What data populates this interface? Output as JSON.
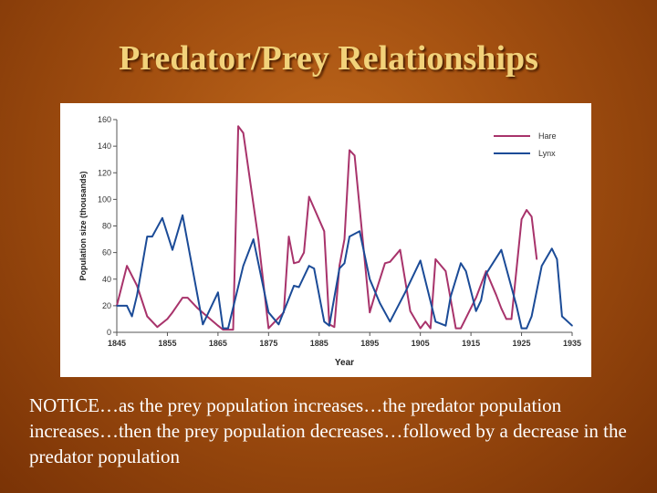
{
  "slide": {
    "title": "Predator/Prey Relationships",
    "caption": "NOTICE…as the prey population increases…the predator population increases…then the prey population decreases…followed by a decrease in the predator population"
  },
  "chart_data": {
    "type": "line",
    "xlabel": "Year",
    "ylabel": "Population size (thousands)",
    "xlim": [
      1845,
      1935
    ],
    "ylim": [
      0,
      160
    ],
    "xticks": [
      1845,
      1855,
      1865,
      1875,
      1885,
      1895,
      1905,
      1915,
      1925,
      1935
    ],
    "yticks": [
      0,
      20,
      40,
      60,
      80,
      100,
      120,
      140,
      160
    ],
    "legend_position": "top-right",
    "grid": false,
    "series": [
      {
        "name": "Hare",
        "color": "#a8336b",
        "points": [
          [
            1845,
            20
          ],
          [
            1847,
            50
          ],
          [
            1849,
            35
          ],
          [
            1851,
            12
          ],
          [
            1853,
            4
          ],
          [
            1855,
            10
          ],
          [
            1856,
            15
          ],
          [
            1858,
            26
          ],
          [
            1859,
            26
          ],
          [
            1861,
            18
          ],
          [
            1865,
            5
          ],
          [
            1866,
            2
          ],
          [
            1868,
            2
          ],
          [
            1869,
            155
          ],
          [
            1870,
            150
          ],
          [
            1873,
            70
          ],
          [
            1875,
            3
          ],
          [
            1878,
            15
          ],
          [
            1879,
            72
          ],
          [
            1880,
            52
          ],
          [
            1881,
            53
          ],
          [
            1882,
            60
          ],
          [
            1883,
            102
          ],
          [
            1886,
            76
          ],
          [
            1887,
            6
          ],
          [
            1888,
            4
          ],
          [
            1889,
            50
          ],
          [
            1890,
            70
          ],
          [
            1891,
            137
          ],
          [
            1892,
            133
          ],
          [
            1895,
            15
          ],
          [
            1896,
            28
          ],
          [
            1898,
            52
          ],
          [
            1899,
            53
          ],
          [
            1901,
            62
          ],
          [
            1903,
            16
          ],
          [
            1905,
            3
          ],
          [
            1906,
            8
          ],
          [
            1907,
            3
          ],
          [
            1908,
            55
          ],
          [
            1910,
            46
          ],
          [
            1912,
            3
          ],
          [
            1913,
            3
          ],
          [
            1916,
            26
          ],
          [
            1918,
            46
          ],
          [
            1920,
            28
          ],
          [
            1921,
            18
          ],
          [
            1922,
            10
          ],
          [
            1923,
            10
          ],
          [
            1925,
            85
          ],
          [
            1926,
            92
          ],
          [
            1927,
            87
          ],
          [
            1928,
            55
          ]
        ]
      },
      {
        "name": "Lynx",
        "color": "#1b4b97",
        "points": [
          [
            1845,
            20
          ],
          [
            1847,
            20
          ],
          [
            1848,
            12
          ],
          [
            1849,
            28
          ],
          [
            1851,
            72
          ],
          [
            1852,
            72
          ],
          [
            1854,
            86
          ],
          [
            1856,
            62
          ],
          [
            1858,
            88
          ],
          [
            1862,
            6
          ],
          [
            1865,
            30
          ],
          [
            1866,
            3
          ],
          [
            1867,
            3
          ],
          [
            1870,
            50
          ],
          [
            1872,
            70
          ],
          [
            1875,
            15
          ],
          [
            1877,
            6
          ],
          [
            1880,
            35
          ],
          [
            1881,
            34
          ],
          [
            1883,
            50
          ],
          [
            1884,
            48
          ],
          [
            1886,
            8
          ],
          [
            1887,
            5
          ],
          [
            1889,
            48
          ],
          [
            1890,
            52
          ],
          [
            1891,
            72
          ],
          [
            1893,
            76
          ],
          [
            1895,
            40
          ],
          [
            1897,
            22
          ],
          [
            1899,
            8
          ],
          [
            1902,
            30
          ],
          [
            1905,
            54
          ],
          [
            1908,
            8
          ],
          [
            1910,
            5
          ],
          [
            1911,
            27
          ],
          [
            1913,
            52
          ],
          [
            1914,
            46
          ],
          [
            1916,
            16
          ],
          [
            1917,
            24
          ],
          [
            1918,
            44
          ],
          [
            1921,
            62
          ],
          [
            1924,
            20
          ],
          [
            1925,
            3
          ],
          [
            1926,
            3
          ],
          [
            1927,
            12
          ],
          [
            1929,
            50
          ],
          [
            1931,
            63
          ],
          [
            1932,
            55
          ],
          [
            1933,
            12
          ],
          [
            1935,
            5
          ]
        ]
      }
    ]
  }
}
